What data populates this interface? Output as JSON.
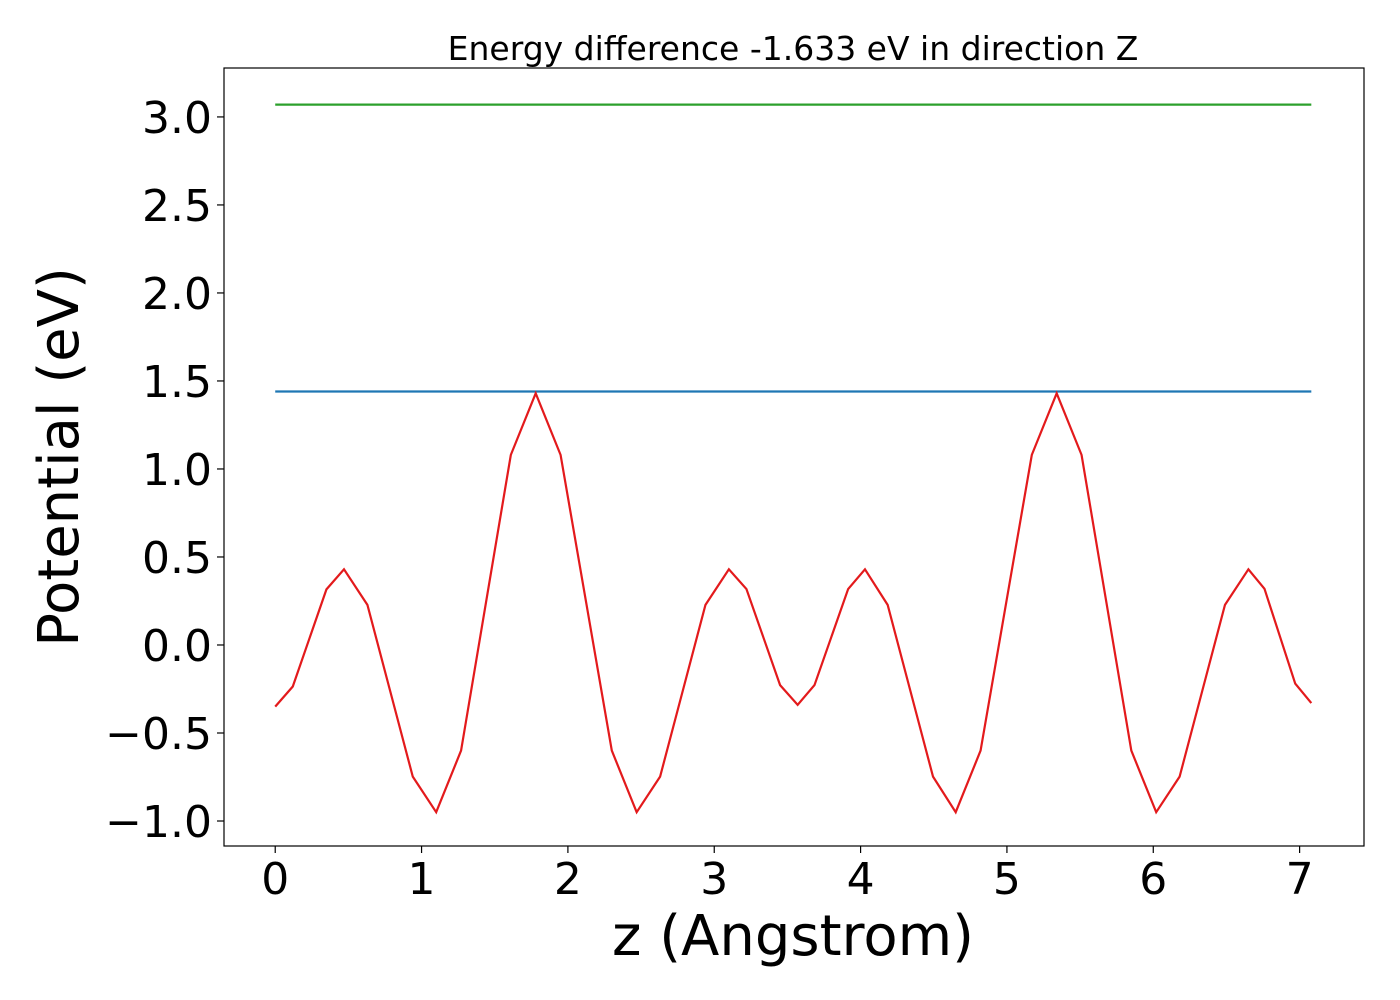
{
  "chart_data": {
    "type": "line",
    "title": "Energy difference -1.633 eV in direction Z",
    "xlabel": "z (Angstrom)",
    "ylabel": "Potential (eV)",
    "xlim": [
      -0.35,
      7.44
    ],
    "ylim": [
      -1.142,
      3.278
    ],
    "xticks": [
      0,
      1,
      2,
      3,
      4,
      5,
      6,
      7
    ],
    "yticks": [
      {
        "value": -1.0,
        "label": "−1.0"
      },
      {
        "value": -0.5,
        "label": "−0.5"
      },
      {
        "value": 0.0,
        "label": "0.0"
      },
      {
        "value": 0.5,
        "label": "0.5"
      },
      {
        "value": 1.0,
        "label": "1.0"
      },
      {
        "value": 1.5,
        "label": "1.5"
      },
      {
        "value": 2.0,
        "label": "2.0"
      },
      {
        "value": 2.5,
        "label": "2.5"
      },
      {
        "value": 3.0,
        "label": "3.0"
      }
    ],
    "series": [
      {
        "color": "#1f77b4",
        "x": [
          0,
          7.08
        ],
        "values": [
          1.44,
          1.44
        ]
      },
      {
        "color": "#2ca02c",
        "x": [
          0,
          7.08
        ],
        "values": [
          3.07,
          3.07
        ]
      },
      {
        "color": "#e31a1c",
        "x": [
          0,
          0.12,
          0.235,
          0.35,
          0.47,
          0.63,
          0.785,
          0.94,
          1.1,
          1.27,
          1.44,
          1.61,
          1.78,
          1.95,
          2.125,
          2.3,
          2.47,
          2.63,
          2.785,
          2.94,
          3.1,
          3.22,
          3.335,
          3.45,
          3.57,
          3.685,
          3.8,
          3.915,
          4.03,
          4.185,
          4.34,
          4.495,
          4.65,
          4.82,
          4.995,
          5.17,
          5.34,
          5.51,
          5.68,
          5.85,
          6.02,
          6.18,
          6.335,
          6.49,
          6.65,
          6.76,
          6.865,
          6.97,
          7.08
        ],
        "values": [
          -0.35,
          -0.236,
          0.04,
          0.316,
          0.43,
          0.228,
          -0.26,
          -0.748,
          -0.95,
          -0.6,
          0.24,
          1.08,
          1.43,
          1.08,
          0.24,
          -0.6,
          -0.95,
          -0.748,
          -0.26,
          0.228,
          0.43,
          0.318,
          0.045,
          -0.228,
          -0.34,
          -0.228,
          0.045,
          0.318,
          0.43,
          0.228,
          -0.26,
          -0.748,
          -0.95,
          -0.6,
          0.24,
          1.08,
          1.43,
          1.08,
          0.24,
          -0.6,
          -0.95,
          -0.748,
          -0.26,
          0.228,
          0.43,
          0.319,
          0.05,
          -0.219,
          -0.33
        ]
      }
    ]
  }
}
